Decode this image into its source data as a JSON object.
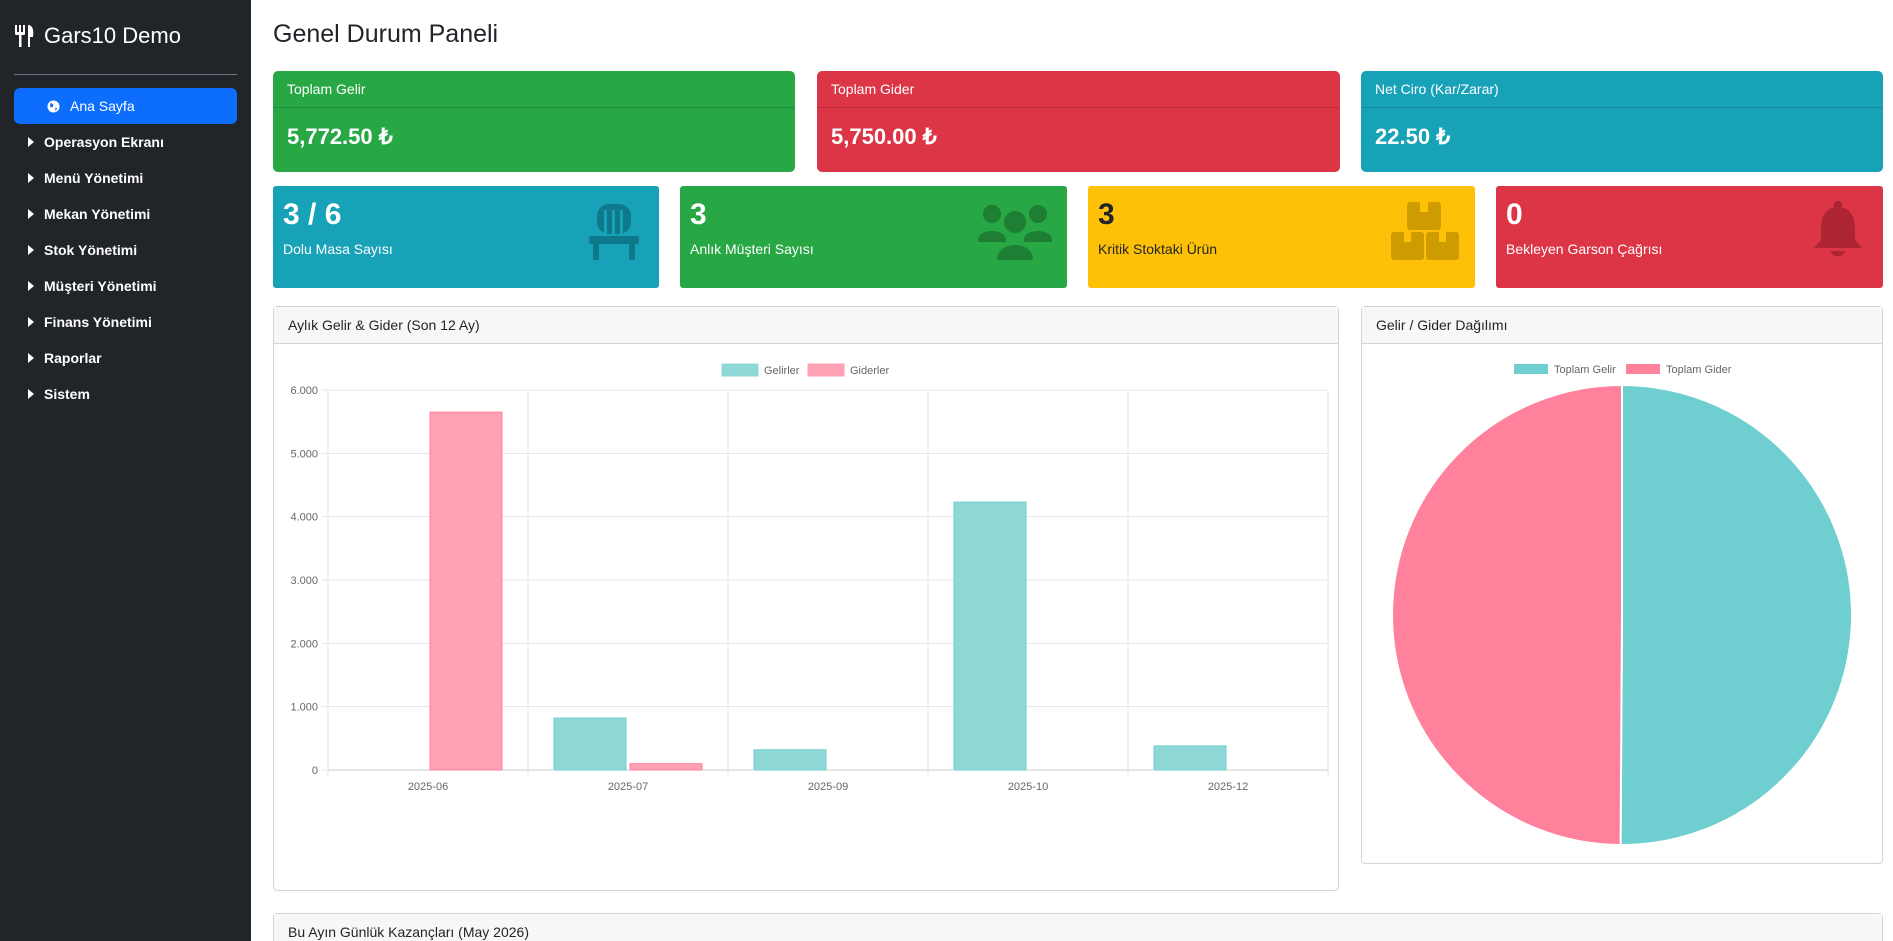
{
  "sidebar": {
    "brand": "Gars10 Demo",
    "items": [
      {
        "label": "Ana Sayfa",
        "active": true,
        "icon": "globe-icon"
      },
      {
        "label": "Operasyon Ekranı"
      },
      {
        "label": "Menü Yönetimi"
      },
      {
        "label": "Mekan Yönetimi"
      },
      {
        "label": "Stok Yönetimi"
      },
      {
        "label": "Müşteri Yönetimi"
      },
      {
        "label": "Finans Yönetimi"
      },
      {
        "label": "Raporlar"
      },
      {
        "label": "Sistem"
      }
    ]
  },
  "page": {
    "title": "Genel Durum Paneli"
  },
  "summary": {
    "income": {
      "label": "Toplam Gelir",
      "value": "5,772.50 ₺"
    },
    "expense": {
      "label": "Toplam Gider",
      "value": "5,750.00 ₺"
    },
    "net": {
      "label": "Net Ciro (Kar/Zarar)",
      "value": "22.50 ₺"
    }
  },
  "stats": {
    "tables": {
      "value": "3 / 6",
      "label": "Dolu Masa Sayısı",
      "icon": "table-icon"
    },
    "customers": {
      "value": "3",
      "label": "Anlık Müşteri Sayısı",
      "icon": "users-icon"
    },
    "stock": {
      "value": "3",
      "label": "Kritik Stoktaki Ürün",
      "icon": "boxes-icon"
    },
    "waiter": {
      "value": "0",
      "label": "Bekleyen Garson Çağrısı",
      "icon": "bell-icon"
    }
  },
  "panels": {
    "monthly_title": "Aylık Gelir & Gider (Son 12 Ay)",
    "distribution_title": "Gelir / Gider Dağılımı",
    "daily_title": "Bu Ayın Günlük Kazançları (May 2026)"
  },
  "colors": {
    "income": "#28a745",
    "expense": "#dc3545",
    "net": "#17a2b8",
    "bar_income": "#8fd8d8",
    "bar_expense": "#ffa1b5",
    "pie_income": "#6fcecf",
    "pie_expense": "#ff819b"
  },
  "chart_data": [
    {
      "type": "bar",
      "categories": [
        "2025-06",
        "2025-07",
        "2025-09",
        "2025-10",
        "2025-12"
      ],
      "series": [
        {
          "name": "Gelirler",
          "values": [
            0,
            820,
            320,
            4230,
            380
          ]
        },
        {
          "name": "Giderler",
          "values": [
            5650,
            100,
            0,
            0,
            0
          ]
        }
      ],
      "ylim": [
        0,
        6000
      ],
      "yticks": [
        "0",
        "1.000",
        "2.000",
        "3.000",
        "4.000",
        "5.000",
        "6.000"
      ],
      "legend": "top",
      "grid": true
    },
    {
      "type": "pie",
      "labels": [
        "Toplam Gelir",
        "Toplam Gider"
      ],
      "values": [
        5772.5,
        5750
      ],
      "legend": "top"
    }
  ]
}
